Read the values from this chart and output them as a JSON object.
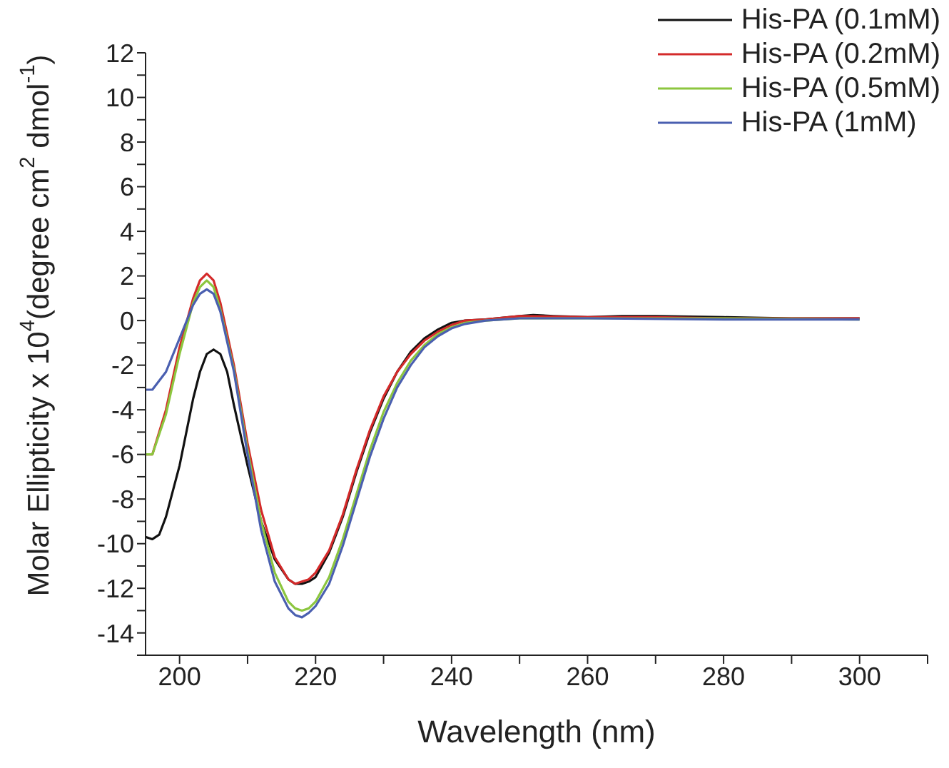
{
  "chart_data": {
    "type": "line",
    "xlabel": "Wavelength (nm)",
    "ylabel": "Molar Ellipticity x 10$^{4}$(degree cm$^{2}$ dmol$^{-1}$)",
    "xlim": [
      195,
      310
    ],
    "ylim": [
      -15,
      12
    ],
    "xticks": [
      200,
      {
        "value": 210,
        "label": null
      },
      220,
      {
        "value": 230,
        "label": null
      },
      240,
      {
        "value": 250,
        "label": null
      },
      260,
      {
        "value": 270,
        "label": null
      },
      280,
      {
        "value": 290,
        "label": null
      },
      300,
      {
        "value": 310,
        "label": null
      }
    ],
    "yticks": [
      {
        "value": -15,
        "label": null
      },
      -14,
      {
        "value": -13,
        "label": null
      },
      -12,
      {
        "value": -11,
        "label": null
      },
      -10,
      {
        "value": -9,
        "label": null
      },
      -8,
      {
        "value": -7,
        "label": null
      },
      -6,
      {
        "value": -5,
        "label": null
      },
      -4,
      {
        "value": -3,
        "label": null
      },
      -2,
      {
        "value": -1,
        "label": null
      },
      0,
      {
        "value": 1,
        "label": null
      },
      2,
      {
        "value": 3,
        "label": null
      },
      4,
      {
        "value": 5,
        "label": null
      },
      6,
      {
        "value": 7,
        "label": null
      },
      8,
      {
        "value": 9,
        "label": null
      },
      10,
      {
        "value": 11,
        "label": null
      },
      12
    ],
    "grid": false,
    "legend": "top right",
    "marker": "none",
    "line_style": "solid",
    "series": [
      {
        "name": "His-PA (0.1mM)",
        "color": "#111111",
        "x": [
          195,
          196,
          197,
          198,
          200,
          202,
          203,
          204,
          205,
          206,
          207,
          208,
          210,
          212,
          214,
          216,
          217,
          218,
          219,
          220,
          222,
          224,
          226,
          228,
          230,
          232,
          234,
          236,
          238,
          240,
          242,
          245,
          250,
          252,
          255,
          260,
          265,
          270,
          280,
          290,
          300
        ],
        "values": [
          -9.7,
          -9.8,
          -9.6,
          -8.8,
          -6.5,
          -3.5,
          -2.3,
          -1.5,
          -1.3,
          -1.5,
          -2.3,
          -3.8,
          -6.5,
          -9,
          -10.7,
          -11.6,
          -11.8,
          -11.8,
          -11.7,
          -11.5,
          -10.4,
          -8.8,
          -6.8,
          -5,
          -3.5,
          -2.3,
          -1.4,
          -0.8,
          -0.4,
          -0.1,
          0,
          0.05,
          0.2,
          0.25,
          0.2,
          0.15,
          0.2,
          0.2,
          0.15,
          0.1,
          0.1
        ]
      },
      {
        "name": "His-PA (0.2mM)",
        "color": "#d42a2a",
        "x": [
          195,
          196,
          198,
          200,
          202,
          203,
          204,
          205,
          206,
          208,
          210,
          212,
          214,
          216,
          217,
          218,
          219,
          220,
          222,
          224,
          226,
          228,
          230,
          232,
          234,
          236,
          238,
          240,
          242,
          245,
          250,
          260,
          270,
          280,
          300
        ],
        "values": [
          -6,
          -6,
          -4,
          -1.2,
          1,
          1.8,
          2.1,
          1.8,
          0.8,
          -2,
          -5.5,
          -8.5,
          -10.6,
          -11.6,
          -11.8,
          -11.7,
          -11.6,
          -11.3,
          -10.3,
          -8.7,
          -6.7,
          -4.9,
          -3.4,
          -2.3,
          -1.5,
          -0.9,
          -0.5,
          -0.2,
          0,
          0.05,
          0.2,
          0.15,
          0.15,
          0.1,
          0.1
        ]
      },
      {
        "name": "His-PA (0.5mM)",
        "color": "#8cc63f",
        "x": [
          195,
          196,
          198,
          200,
          202,
          203,
          204,
          205,
          206,
          208,
          210,
          212,
          214,
          216,
          217,
          218,
          219,
          220,
          222,
          224,
          226,
          228,
          230,
          232,
          234,
          236,
          238,
          240,
          242,
          245,
          250,
          260,
          280,
          300
        ],
        "values": [
          -6,
          -6,
          -4.2,
          -1.5,
          0.8,
          1.5,
          1.8,
          1.5,
          0.5,
          -2.2,
          -5.8,
          -9,
          -11.3,
          -12.6,
          -12.9,
          -13,
          -12.9,
          -12.6,
          -11.5,
          -9.8,
          -7.8,
          -5.8,
          -4.1,
          -2.8,
          -1.8,
          -1.1,
          -0.6,
          -0.3,
          -0.1,
          0,
          0.1,
          0.1,
          0.1,
          0.05
        ]
      },
      {
        "name": "His-PA (1mM)",
        "color": "#4a5fb0",
        "x": [
          195,
          196,
          198,
          200,
          202,
          203,
          204,
          205,
          206,
          208,
          210,
          212,
          214,
          216,
          217,
          218,
          219,
          220,
          222,
          224,
          226,
          228,
          230,
          232,
          234,
          236,
          238,
          240,
          242,
          245,
          250,
          260,
          280,
          300
        ],
        "values": [
          -3.1,
          -3.1,
          -2.3,
          -0.8,
          0.7,
          1.2,
          1.4,
          1.2,
          0.4,
          -2.3,
          -6,
          -9.4,
          -11.7,
          -12.9,
          -13.2,
          -13.3,
          -13.1,
          -12.8,
          -11.8,
          -10.1,
          -8.1,
          -6.1,
          -4.4,
          -3,
          -2,
          -1.2,
          -0.7,
          -0.35,
          -0.15,
          0,
          0.1,
          0.1,
          0.05,
          0.05
        ]
      }
    ]
  }
}
